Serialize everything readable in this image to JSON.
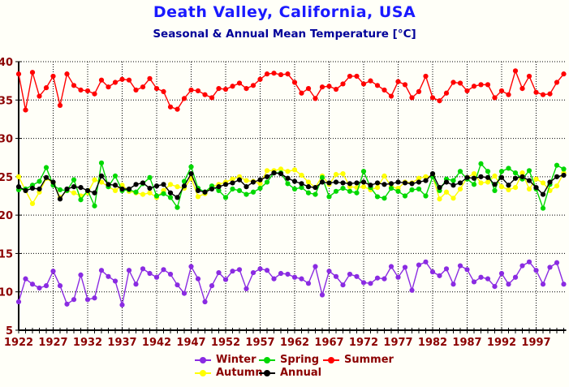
{
  "chart_data": {
    "type": "line",
    "title": "Death Valley, California, USA",
    "subtitle": "Seasonal & Annual Mean Temperature [°C]",
    "title_color": "#1a1aff",
    "subtitle_color": "#000099",
    "tick_label_color": "#8b0000",
    "legend_label_color": "#8b0000",
    "axis_color": "#000000",
    "grid": "dotted",
    "legend_position": "bottom-center",
    "xlim": [
      1922,
      2001
    ],
    "ylim": [
      5,
      40
    ],
    "x_tick_labels": [
      1922,
      1927,
      1932,
      1937,
      1942,
      1947,
      1952,
      1957,
      1962,
      1967,
      1972,
      1977,
      1982,
      1987,
      1992,
      1997
    ],
    "y_ticks": [
      5,
      10,
      15,
      20,
      25,
      30,
      35,
      40
    ],
    "x_start_year": 1922,
    "legend": {
      "rows": [
        [
          "Winter",
          "Spring",
          "Summer"
        ],
        [
          "Autumn",
          "Annual"
        ]
      ]
    },
    "series": [
      {
        "name": "Winter",
        "color": "#8a2be2",
        "values": [
          8.7,
          11.7,
          11.0,
          10.5,
          10.8,
          12.7,
          10.8,
          8.4,
          9.0,
          12.2,
          9.0,
          9.2,
          12.8,
          12.0,
          11.4,
          8.3,
          12.8,
          11.0,
          13.0,
          12.4,
          11.9,
          12.9,
          12.3,
          10.9,
          9.8,
          13.3,
          11.7,
          8.7,
          10.8,
          12.5,
          11.6,
          12.7,
          12.9,
          10.4,
          12.5,
          13.0,
          12.8,
          11.7,
          12.4,
          12.3,
          11.9,
          11.7,
          11.1,
          13.3,
          9.6,
          12.7,
          12.0,
          10.9,
          12.3,
          12.0,
          11.2,
          11.1,
          11.8,
          11.7,
          13.3,
          11.9,
          13.2,
          10.2,
          13.5,
          13.9,
          12.6,
          12.1,
          13.0,
          11.0,
          13.4,
          12.9,
          11.3,
          11.9,
          11.7,
          10.7,
          12.4,
          11.0,
          11.9,
          13.4,
          13.9,
          12.8,
          11.0,
          13.2,
          13.8,
          11.0
        ]
      },
      {
        "name": "Spring",
        "color": "#00d800",
        "values": [
          23.3,
          23.4,
          23.9,
          24.4,
          26.2,
          23.9,
          23.3,
          23.2,
          24.6,
          22.0,
          23.2,
          21.2,
          26.8,
          23.7,
          25.1,
          23.2,
          23.3,
          23.0,
          24.1,
          24.9,
          22.5,
          22.8,
          22.3,
          21.0,
          24.4,
          26.3,
          23.5,
          23.0,
          23.8,
          23.2,
          22.3,
          23.4,
          23.2,
          22.7,
          23.0,
          23.5,
          24.3,
          25.5,
          25.5,
          24.1,
          23.4,
          23.6,
          22.9,
          22.7,
          24.9,
          22.4,
          23.1,
          23.5,
          23.1,
          22.9,
          25.7,
          23.6,
          22.4,
          22.2,
          23.5,
          23.1,
          22.5,
          23.3,
          23.4,
          22.5,
          25.0,
          23.2,
          24.7,
          24.5,
          25.7,
          24.7,
          24.0,
          26.7,
          25.7,
          23.2,
          25.7,
          26.1,
          25.5,
          24.7,
          25.8,
          23.4,
          20.9,
          24.0,
          26.5,
          26.0
        ]
      },
      {
        "name": "Summer",
        "color": "#ff0000",
        "values": [
          38.4,
          33.7,
          38.6,
          35.5,
          36.6,
          38.1,
          34.3,
          38.4,
          36.9,
          36.3,
          36.2,
          35.8,
          37.6,
          36.7,
          37.3,
          37.7,
          37.6,
          36.3,
          36.7,
          37.8,
          36.5,
          36.1,
          34.1,
          33.8,
          35.2,
          36.3,
          36.2,
          35.7,
          35.3,
          36.5,
          36.4,
          36.8,
          37.2,
          36.5,
          36.9,
          37.7,
          38.4,
          38.5,
          38.3,
          38.4,
          37.3,
          35.9,
          36.5,
          35.2,
          36.7,
          36.8,
          36.4,
          37.1,
          38.1,
          38.1,
          37.1,
          37.5,
          36.9,
          36.3,
          35.5,
          37.4,
          37.0,
          35.3,
          36.1,
          38.1,
          35.3,
          34.9,
          35.9,
          37.3,
          37.2,
          36.2,
          36.8,
          37.0,
          37.0,
          35.3,
          36.2,
          35.7,
          38.8,
          36.5,
          38.1,
          36.0,
          35.7,
          35.8,
          37.3,
          38.4
        ]
      },
      {
        "name": "Autumn",
        "color": "#ffff00",
        "values": [
          25.0,
          23.2,
          21.5,
          23.0,
          24.8,
          24.2,
          22.3,
          23.2,
          22.9,
          22.5,
          22.9,
          24.6,
          24.3,
          23.7,
          23.2,
          23.9,
          23.1,
          22.9,
          22.7,
          22.9,
          22.3,
          23.2,
          24.0,
          23.7,
          23.5,
          24.8,
          22.4,
          22.8,
          23.7,
          24.0,
          24.3,
          24.7,
          25.0,
          24.5,
          24.4,
          24.1,
          25.8,
          25.8,
          26.0,
          25.7,
          25.9,
          25.2,
          24.3,
          23.6,
          25.1,
          24.0,
          25.3,
          25.4,
          23.7,
          23.6,
          23.7,
          23.3,
          23.6,
          25.1,
          23.7,
          23.5,
          24.3,
          24.2,
          24.8,
          25.0,
          25.1,
          22.1,
          23.0,
          22.2,
          23.4,
          24.9,
          25.4,
          24.2,
          24.3,
          25.1,
          23.7,
          23.3,
          23.6,
          25.5,
          23.4,
          24.7,
          24.2,
          23.2,
          23.8,
          25.5
        ]
      },
      {
        "name": "Annual",
        "color": "#000000",
        "values": [
          23.7,
          23.2,
          23.5,
          23.4,
          24.9,
          24.3,
          22.1,
          23.4,
          23.7,
          23.6,
          23.2,
          22.9,
          25.1,
          24.0,
          23.9,
          23.4,
          23.4,
          24.0,
          24.2,
          23.5,
          23.8,
          24.0,
          22.9,
          22.3,
          23.8,
          25.4,
          23.2,
          23.0,
          23.4,
          23.7,
          24.0,
          24.2,
          24.6,
          23.7,
          24.3,
          24.6,
          25.0,
          25.5,
          25.4,
          24.8,
          24.4,
          24.1,
          23.7,
          23.6,
          24.3,
          24.2,
          24.3,
          24.2,
          24.1,
          24.2,
          24.3,
          23.9,
          24.2,
          24.0,
          24.1,
          24.3,
          24.2,
          24.1,
          24.3,
          24.5,
          25.4,
          23.6,
          24.3,
          23.9,
          24.2,
          24.9,
          24.8,
          25.0,
          24.9,
          24.0,
          24.9,
          23.9,
          24.8,
          25.0,
          24.5,
          23.6,
          22.7,
          24.3,
          25.0,
          25.2
        ]
      }
    ]
  }
}
